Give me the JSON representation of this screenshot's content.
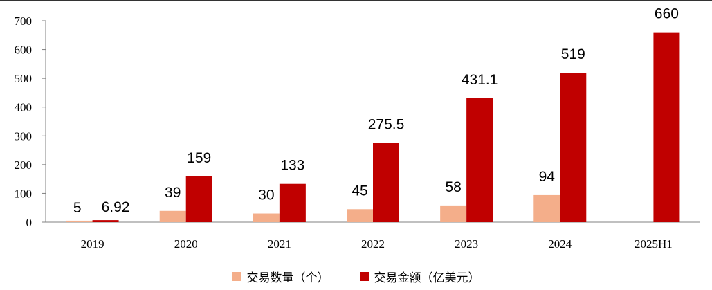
{
  "chart_data": {
    "type": "bar",
    "categories": [
      "2019",
      "2020",
      "2021",
      "2022",
      "2023",
      "2024",
      "2025H1"
    ],
    "series": [
      {
        "name": "交易数量（个）",
        "color": "#f4ae8a",
        "values": [
          5,
          39,
          30,
          45,
          58,
          94,
          null
        ],
        "labels": [
          "5",
          "39",
          "30",
          "45",
          "58",
          "94",
          ""
        ]
      },
      {
        "name": "交易金额（亿美元）",
        "color": "#c00000",
        "values": [
          6.92,
          159,
          133,
          275.5,
          431.1,
          519,
          660
        ],
        "labels": [
          "6.92",
          "159",
          "133",
          "275.5",
          "431.1",
          "519",
          "660"
        ]
      }
    ],
    "yticks": [
      "0",
      "100",
      "200",
      "300",
      "400",
      "500",
      "600",
      "700"
    ],
    "ylim": [
      0,
      700
    ],
    "grid": false,
    "legend_position": "bottom"
  }
}
